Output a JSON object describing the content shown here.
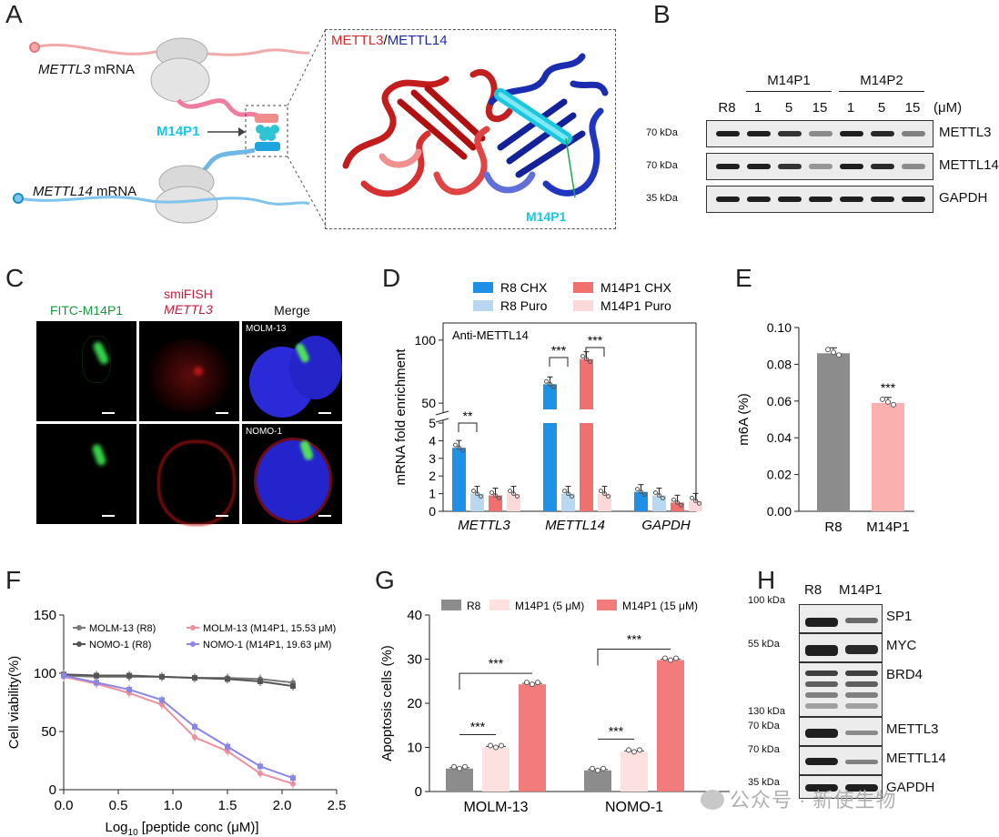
{
  "panels": {
    "A": "A",
    "B": "B",
    "C": "C",
    "D": "D",
    "E": "E",
    "F": "F",
    "G": "G",
    "H": "H"
  },
  "panelA": {
    "mettl3_mrna": "METTL3",
    "mettl14_mrna": "METTL14",
    "mrna_suffix": " mRNA",
    "peptide": "M14P1",
    "structure_title_a": "METTL3",
    "structure_title_sep": "/",
    "structure_title_b": "METTL14",
    "structure_peptide_label": "M14P1",
    "colors": {
      "mettl3": "#d42a2a",
      "mettl14": "#1f2aa8",
      "peptide": "#19c8e0"
    }
  },
  "panelB": {
    "group_labels": [
      "M14P1",
      "M14P2"
    ],
    "unit": "(μM)",
    "lanes": [
      "R8",
      "1",
      "5",
      "15",
      "1",
      "5",
      "15"
    ],
    "blots": [
      {
        "name": "METTL3",
        "kda": "70 kDa",
        "intensity": [
          0.95,
          0.95,
          0.85,
          0.45,
          0.95,
          0.9,
          0.5
        ]
      },
      {
        "name": "METTL14",
        "kda": "70 kDa",
        "intensity": [
          0.95,
          0.95,
          0.85,
          0.4,
          0.95,
          0.9,
          0.45
        ]
      },
      {
        "name": "GAPDH",
        "kda": "35 kDa",
        "intensity": [
          0.95,
          0.95,
          0.95,
          0.95,
          0.95,
          0.95,
          0.95
        ]
      }
    ]
  },
  "panelC": {
    "col1": "FITC-M14P1",
    "col2_line1": "smiFISH",
    "col2_line2": "METTL3",
    "col3": "Merge",
    "rows": [
      "MOLM-13",
      "NOMO-1"
    ]
  },
  "chart_data": [
    {
      "panel": "D",
      "type": "bar",
      "title": "Anti-METTL14",
      "ylabel": "mRNA fold enrichment",
      "categories": [
        "METTL3",
        "METTL14",
        "GAPDH"
      ],
      "series": [
        {
          "name": "R8 CHX",
          "color": "#1e90e6",
          "values": [
            3.6,
            65,
            1.1
          ]
        },
        {
          "name": "R8 Puro",
          "color": "#b8d8f2",
          "values": [
            1.0,
            1.0,
            0.9
          ]
        },
        {
          "name": "M14P1 CHX",
          "color": "#f07070",
          "values": [
            0.9,
            85,
            0.5
          ]
        },
        {
          "name": "M14P1 Puro",
          "color": "#fbd9d9",
          "values": [
            1.0,
            1.0,
            0.6
          ]
        }
      ],
      "yticks_low": [
        "0",
        "1",
        "2",
        "3",
        "4",
        "5"
      ],
      "yticks_high": [
        "50",
        "100"
      ],
      "sig": [
        "**",
        "***",
        "***"
      ]
    },
    {
      "panel": "E",
      "type": "bar",
      "ylabel": "m6A (%)",
      "categories": [
        "R8",
        "M14P1"
      ],
      "values": [
        0.086,
        0.059
      ],
      "colors": [
        "#8c8c8c",
        "#fbb0b0"
      ],
      "ylim": [
        0,
        0.1
      ],
      "yticks": [
        "0.00",
        "0.02",
        "0.04",
        "0.06",
        "0.08",
        "0.10"
      ],
      "sig": "***"
    },
    {
      "panel": "F",
      "type": "line",
      "xlabel": "Log",
      "xlabel_sub": "10",
      "xlabel_rest": " [peptide conc (μM)]",
      "ylabel": "Cell viability(%)",
      "xlim": [
        0,
        2.5
      ],
      "ylim": [
        0,
        150
      ],
      "xticks": [
        "0.0",
        "0.5",
        "1.0",
        "1.5",
        "2.0",
        "2.5"
      ],
      "yticks": [
        "0",
        "50",
        "100",
        "150"
      ],
      "x": [
        0,
        0.3,
        0.6,
        0.9,
        1.2,
        1.5,
        1.8,
        2.1
      ],
      "series": [
        {
          "name": "MOLM-13 (R8)",
          "color": "#7a7a7a",
          "values": [
            98,
            97,
            97,
            97,
            96,
            96,
            95,
            92
          ]
        },
        {
          "name": "NOMO-1 (R8)",
          "color": "#555555",
          "values": [
            99,
            98,
            98,
            97,
            96,
            95,
            93,
            89
          ]
        },
        {
          "name": "MOLM-13 (M14P1, 15.53 μM)",
          "color": "#ee8f9c",
          "values": [
            97,
            91,
            83,
            73,
            45,
            33,
            14,
            5
          ]
        },
        {
          "name": "NOMO-1 (M14P1, 19.63 μM)",
          "color": "#8a86e8",
          "values": [
            98,
            92,
            86,
            77,
            54,
            37,
            20,
            10
          ]
        }
      ]
    },
    {
      "panel": "G",
      "type": "bar",
      "ylabel": "Apoptosis cells (%)",
      "categories": [
        "MOLM-13",
        "NOMO-1"
      ],
      "series": [
        {
          "name": "R8",
          "color": "#8c8c8c",
          "values": [
            5.2,
            4.8
          ]
        },
        {
          "name": "M14P1 (5 μM)",
          "color": "#fde0e0",
          "values": [
            10.0,
            9.0
          ]
        },
        {
          "name": "M14P1 (15 μM)",
          "color": "#f27c7c",
          "values": [
            24.3,
            29.8
          ]
        }
      ],
      "ylim": [
        0,
        40
      ],
      "yticks": [
        "0",
        "10",
        "20",
        "30",
        "40"
      ],
      "sig": "***"
    }
  ],
  "panelH": {
    "lanes": [
      "R8",
      "M14P1"
    ],
    "blots": [
      {
        "name": "SP1",
        "kda": "100 kDa"
      },
      {
        "name": "MYC",
        "kda": "55 kDa"
      },
      {
        "name": "BRD4",
        "kda": "130 kDa"
      },
      {
        "name": "METTL3",
        "kda": "70 kDa"
      },
      {
        "name": "METTL14",
        "kda": "70 kDa"
      },
      {
        "name": "GAPDH",
        "kda": "35 kDa"
      }
    ]
  },
  "watermark": "公众号 · 新使生物"
}
